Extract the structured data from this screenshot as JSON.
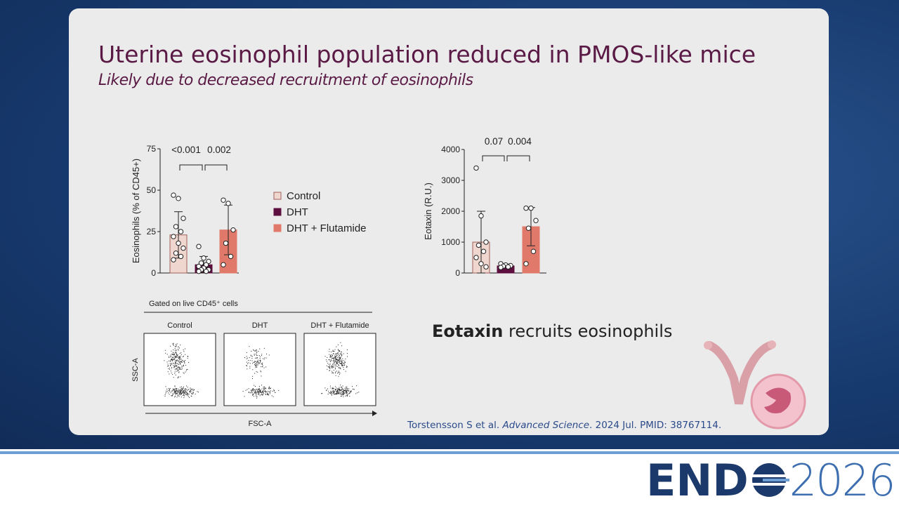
{
  "header": {
    "title": "Uterine eosinophil population reduced in PMOS-like mice",
    "subtitle": "Likely due to decreased recruitment of eosinophils"
  },
  "chart_data": [
    {
      "type": "bar",
      "categories": [
        "Control",
        "DHT",
        "DHT + Flutamide"
      ],
      "colors": [
        "#efd6cf",
        "#5c0f3e",
        "#e0796a"
      ],
      "values": [
        23,
        5,
        26
      ],
      "errors": [
        14,
        5,
        15
      ],
      "points": [
        [
          47,
          45,
          33,
          28,
          25,
          22,
          18,
          15,
          12,
          10,
          8
        ],
        [
          16,
          9,
          7,
          6,
          5,
          4,
          3,
          2,
          2,
          1,
          1
        ],
        [
          44,
          42,
          26,
          18,
          10,
          5
        ]
      ],
      "ylabel": "Eosinophils (% of CD45+)",
      "ylim": [
        0,
        75
      ],
      "yticks": [
        0,
        25,
        50,
        75
      ],
      "annotations": [
        "<0.001",
        "0.002"
      ],
      "legend": true
    },
    {
      "type": "bar",
      "categories": [
        "Control",
        "DHT",
        "DHT + Flutamide"
      ],
      "colors": [
        "#efd6cf",
        "#5c0f3e",
        "#e0796a"
      ],
      "values": [
        1000,
        230,
        1500
      ],
      "errors": [
        1000,
        60,
        620
      ],
      "points": [
        [
          3400,
          1850,
          1000,
          900,
          700,
          500,
          300,
          200
        ],
        [
          300,
          260,
          240,
          220,
          200,
          180
        ],
        [
          2100,
          2100,
          1700,
          1450,
          700,
          300
        ]
      ],
      "ylabel": "Eotaxin (R.U.)",
      "ylim": [
        0,
        4000
      ],
      "yticks": [
        0,
        1000,
        2000,
        3000,
        4000
      ],
      "annotations": [
        "0.07",
        "0.004"
      ],
      "legend": false
    }
  ],
  "flow": {
    "gate_label": "Gated on live CD45⁺ cells",
    "panels": [
      "Control",
      "DHT",
      "DHT + Flutamide"
    ],
    "y_label": "SSC-A",
    "x_label": "FSC-A"
  },
  "note": {
    "bold": "Eotaxin",
    "rest": " recruits eosinophils"
  },
  "citation": {
    "authors": "Torstensson S et al. ",
    "journal": "Advanced Science",
    "rest": ". 2024 Jul. PMID: 38767114."
  },
  "logo": {
    "left": "END",
    "right": "2026"
  }
}
